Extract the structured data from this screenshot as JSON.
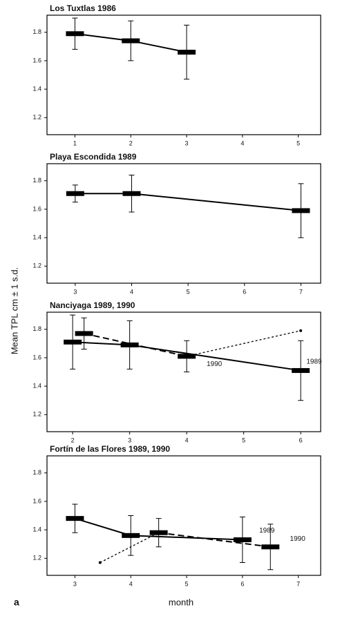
{
  "ylabel": "Mean TPL cm ± 1 s.d.",
  "xlabel": "month",
  "panel_label": "a",
  "chart_data": [
    {
      "type": "line",
      "title": "Los Tuxtlas 1986",
      "xlim": [
        0.5,
        5.4
      ],
      "ylim": [
        1.08,
        1.92
      ],
      "xticks": [
        1,
        2,
        3,
        4,
        5
      ],
      "yticks": [
        1.2,
        1.4,
        1.6,
        1.8
      ],
      "series": [
        {
          "color": "#000000",
          "line_style": "solid",
          "x": [
            1,
            2,
            3
          ],
          "values": [
            1.79,
            1.74,
            1.66
          ],
          "errors": [
            0.11,
            0.14,
            0.19
          ]
        }
      ]
    },
    {
      "type": "line",
      "title": "Playa Escondida 1989",
      "xlim": [
        2.5,
        7.35
      ],
      "ylim": [
        1.08,
        1.92
      ],
      "xticks": [
        3,
        4,
        5,
        6,
        7
      ],
      "yticks": [
        1.2,
        1.4,
        1.6,
        1.8
      ],
      "series": [
        {
          "color": "#000000",
          "line_style": "solid",
          "x": [
            3,
            4,
            7
          ],
          "values": [
            1.71,
            1.71,
            1.59
          ],
          "errors": [
            0.06,
            0.13,
            0.19
          ]
        }
      ]
    },
    {
      "type": "line",
      "title": "Nanciyaga 1989, 1990",
      "xlim": [
        1.55,
        6.35
      ],
      "ylim": [
        1.08,
        1.92
      ],
      "xticks": [
        2,
        3,
        4,
        5,
        6
      ],
      "yticks": [
        1.2,
        1.4,
        1.6,
        1.8
      ],
      "series": [
        {
          "name": "1989",
          "color": "#000000",
          "line_style": "solid",
          "x": [
            2,
            3,
            6
          ],
          "values": [
            1.71,
            1.69,
            1.51
          ],
          "errors": [
            0.19,
            0.17,
            0.21
          ]
        },
        {
          "name": "1990",
          "color": "#000000",
          "line_style": "dashed",
          "x": [
            2.2,
            4
          ],
          "values": [
            1.77,
            1.61
          ],
          "errors": [
            0.11,
            0.11
          ]
        },
        {
          "color": "#000000",
          "line_style": "dotted",
          "x": [
            4,
            6
          ],
          "values": [
            1.61,
            1.79
          ],
          "errors": [
            null,
            null
          ]
        }
      ]
    },
    {
      "type": "line",
      "title": "Fortín de las Flores 1989, 1990",
      "xlim": [
        2.5,
        7.4
      ],
      "ylim": [
        1.08,
        1.92
      ],
      "xticks": [
        3,
        4,
        5,
        6,
        7
      ],
      "yticks": [
        1.2,
        1.4,
        1.6,
        1.8
      ],
      "series": [
        {
          "name": "1989",
          "color": "#000000",
          "line_style": "solid",
          "x": [
            3,
            4,
            6
          ],
          "values": [
            1.48,
            1.36,
            1.33
          ],
          "errors": [
            0.1,
            0.14,
            0.16
          ]
        },
        {
          "name": "1990",
          "color": "#000000",
          "line_style": "dashed",
          "x": [
            4.5,
            6.5
          ],
          "values": [
            1.38,
            1.28
          ],
          "errors": [
            0.1,
            0.16
          ]
        },
        {
          "color": "#000000",
          "line_style": "dotted",
          "x": [
            3.45,
            4.5
          ],
          "values": [
            1.17,
            1.38
          ],
          "errors": [
            null,
            null
          ]
        }
      ]
    }
  ]
}
